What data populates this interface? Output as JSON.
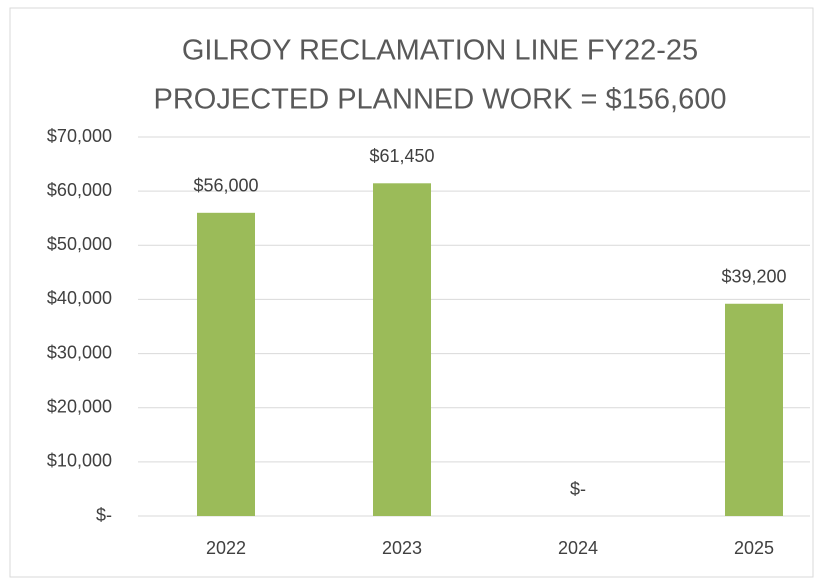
{
  "chart_data": {
    "type": "bar",
    "title": [
      "GILROY RECLAMATION LINE FY22-25",
      "PROJECTED PLANNED WORK = $156,600"
    ],
    "categories": [
      "2022",
      "2023",
      "2024",
      "2025"
    ],
    "values": [
      56000,
      61450,
      0,
      39200
    ],
    "value_labels": [
      "$56,000",
      "$61,450",
      "$-",
      "$39,200"
    ],
    "color": "#9bbb59",
    "ylim": [
      0,
      70000
    ],
    "yticks": [
      {
        "value": 0,
        "label": "$-"
      },
      {
        "value": 10000,
        "label": "$10,000"
      },
      {
        "value": 20000,
        "label": "$20,000"
      },
      {
        "value": 30000,
        "label": "$30,000"
      },
      {
        "value": 40000,
        "label": "$40,000"
      },
      {
        "value": 50000,
        "label": "$50,000"
      },
      {
        "value": 60000,
        "label": "$60,000"
      },
      {
        "value": 70000,
        "label": "$70,000"
      }
    ],
    "grid": true
  }
}
